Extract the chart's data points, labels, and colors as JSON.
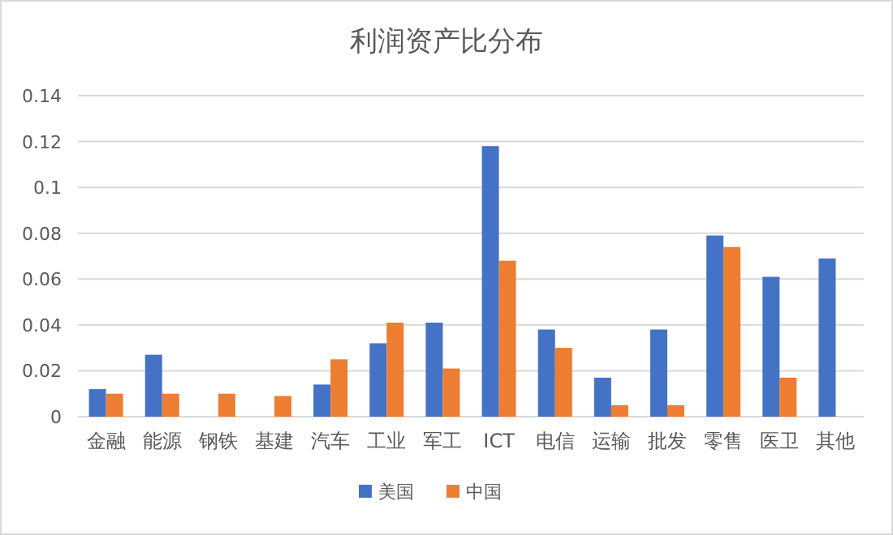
{
  "chart_data": {
    "type": "bar",
    "title": "利润资产比分布",
    "categories": [
      "金融",
      "能源",
      "钢铁",
      "基建",
      "汽车",
      "工业",
      "军工",
      "ICT",
      "电信",
      "运输",
      "批发",
      "零售",
      "医卫",
      "其他"
    ],
    "series": [
      {
        "name": "美国",
        "color": "#4472c4",
        "values": [
          0.012,
          0.027,
          null,
          null,
          0.014,
          0.032,
          0.041,
          0.118,
          0.038,
          0.017,
          0.038,
          0.079,
          0.061,
          0.069
        ]
      },
      {
        "name": "中国",
        "color": "#ed7d31",
        "values": [
          0.01,
          0.01,
          0.01,
          0.009,
          0.025,
          0.041,
          0.021,
          0.068,
          0.03,
          0.005,
          0.005,
          0.074,
          0.017,
          null
        ]
      }
    ],
    "ylim": [
      0,
      0.14
    ],
    "yticks": [
      0,
      0.02,
      0.04,
      0.06,
      0.08,
      0.1,
      0.12,
      0.14
    ],
    "grid": "y",
    "legend": "bottom"
  }
}
